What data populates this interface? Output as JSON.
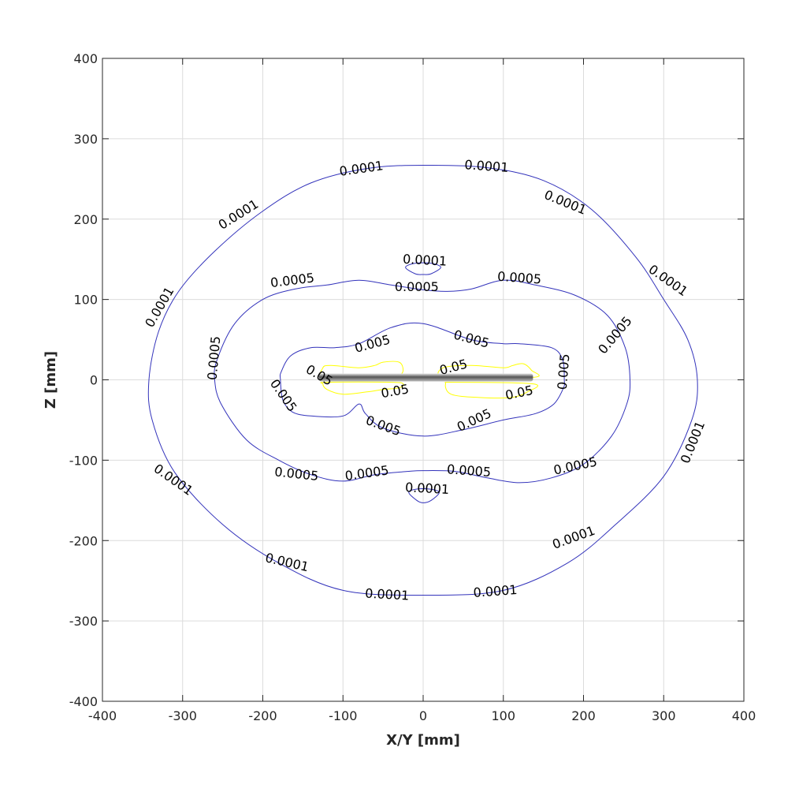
{
  "chart_data": {
    "type": "contour",
    "title": "",
    "xlabel": "X/Y [mm]",
    "ylabel": "Z [mm]",
    "xlim": [
      -400,
      400
    ],
    "ylim": [
      -400,
      400
    ],
    "xticks": [
      -400,
      -300,
      -200,
      -100,
      0,
      100,
      200,
      300,
      400
    ],
    "yticks": [
      -400,
      -300,
      -200,
      -100,
      0,
      100,
      200,
      300,
      400
    ],
    "xtick_labels": [
      "-400",
      "-300",
      "-200",
      "-100",
      "0",
      "100",
      "200",
      "300",
      "400"
    ],
    "ytick_labels": [
      "-400",
      "-300",
      "-200",
      "-100",
      "0",
      "100",
      "200",
      "300",
      "400"
    ],
    "grid": true,
    "conductor": {
      "x_start": -130,
      "x_end": 137,
      "z": 3
    },
    "contours": [
      {
        "level": "0.0001",
        "color": "#3333bb",
        "closed": true,
        "points": [
          [
            0,
            267
          ],
          [
            80,
            264
          ],
          [
            150,
            248
          ],
          [
            210,
            212
          ],
          [
            265,
            153
          ],
          [
            300,
            100
          ],
          [
            330,
            50
          ],
          [
            342,
            0
          ],
          [
            335,
            -50
          ],
          [
            300,
            -120
          ],
          [
            240,
            -180
          ],
          [
            180,
            -228
          ],
          [
            100,
            -262
          ],
          [
            0,
            -268
          ],
          [
            -100,
            -262
          ],
          [
            -180,
            -228
          ],
          [
            -250,
            -180
          ],
          [
            -310,
            -115
          ],
          [
            -338,
            -50
          ],
          [
            -342,
            0
          ],
          [
            -330,
            60
          ],
          [
            -305,
            110
          ],
          [
            -260,
            160
          ],
          [
            -200,
            210
          ],
          [
            -140,
            245
          ],
          [
            -70,
            263
          ]
        ],
        "labels": [
          [
            -77,
            262,
            -8
          ],
          [
            79,
            265,
            4
          ],
          [
            177,
            220,
            22
          ],
          [
            305,
            123,
            35
          ],
          [
            -230,
            205,
            -32
          ],
          [
            -328,
            90,
            -60
          ],
          [
            337,
            -78,
            -68
          ],
          [
            -312,
            -125,
            35
          ],
          [
            188,
            -197,
            -20
          ],
          [
            -170,
            -228,
            13
          ],
          [
            -45,
            -268,
            3
          ],
          [
            90,
            -264,
            -4
          ]
        ]
      },
      {
        "level": "0.0005",
        "color": "#3333bb",
        "closed": true,
        "points": [
          [
            0,
            112
          ],
          [
            -40,
            118
          ],
          [
            -80,
            124
          ],
          [
            -120,
            118
          ],
          [
            -160,
            113
          ],
          [
            -200,
            100
          ],
          [
            -235,
            70
          ],
          [
            -257,
            25
          ],
          [
            -260,
            0
          ],
          [
            -252,
            -30
          ],
          [
            -220,
            -75
          ],
          [
            -180,
            -100
          ],
          [
            -140,
            -118
          ],
          [
            -100,
            -126
          ],
          [
            -60,
            -118
          ],
          [
            -20,
            -114
          ],
          [
            0,
            -113
          ],
          [
            40,
            -114
          ],
          [
            80,
            -122
          ],
          [
            120,
            -128
          ],
          [
            160,
            -122
          ],
          [
            200,
            -105
          ],
          [
            235,
            -70
          ],
          [
            254,
            -30
          ],
          [
            258,
            0
          ],
          [
            252,
            40
          ],
          [
            230,
            80
          ],
          [
            190,
            105
          ],
          [
            140,
            118
          ],
          [
            100,
            124
          ],
          [
            60,
            113
          ],
          [
            30,
            110
          ]
        ],
        "labels": [
          [
            -163,
            123,
            -7
          ],
          [
            -8,
            115,
            0
          ],
          [
            120,
            126,
            4
          ],
          [
            -260,
            27,
            -85
          ],
          [
            240,
            55,
            -50
          ],
          [
            -158,
            -118,
            6
          ],
          [
            -70,
            -117,
            -8
          ],
          [
            57,
            -114,
            4
          ],
          [
            190,
            -108,
            -12
          ]
        ]
      },
      {
        "level": "0.005",
        "color": "#3333bb",
        "closed": true,
        "points": [
          [
            0,
            70
          ],
          [
            -40,
            65
          ],
          [
            -80,
            45
          ],
          [
            -110,
            40
          ],
          [
            -140,
            40
          ],
          [
            -165,
            30
          ],
          [
            -177,
            10
          ],
          [
            -178,
            0
          ],
          [
            -175,
            -25
          ],
          [
            -163,
            -40
          ],
          [
            -140,
            -45
          ],
          [
            -100,
            -45
          ],
          [
            -80,
            -30
          ],
          [
            -72,
            -42
          ],
          [
            -50,
            -60
          ],
          [
            0,
            -70
          ],
          [
            50,
            -62
          ],
          [
            100,
            -50
          ],
          [
            140,
            -42
          ],
          [
            163,
            -30
          ],
          [
            175,
            -10
          ],
          [
            176,
            0
          ],
          [
            174,
            25
          ],
          [
            160,
            40
          ],
          [
            120,
            45
          ],
          [
            100,
            45
          ],
          [
            60,
            50
          ]
        ],
        "labels": [
          [
            -63,
            44,
            -15
          ],
          [
            60,
            50,
            15
          ],
          [
            -175,
            -20,
            55
          ],
          [
            176,
            10,
            -85
          ],
          [
            -50,
            -58,
            20
          ],
          [
            64,
            -51,
            -25
          ]
        ]
      },
      {
        "level": "0.0001",
        "color": "#3333bb",
        "closed": true,
        "points": [
          [
            -22,
            140
          ],
          [
            -10,
            145
          ],
          [
            10,
            145
          ],
          [
            22,
            140
          ],
          [
            10,
            132
          ],
          [
            0,
            131
          ],
          [
            -10,
            132
          ]
        ],
        "labels": [
          [
            2,
            148,
            3
          ]
        ]
      },
      {
        "level": "0.0001",
        "color": "#3333bb",
        "closed": true,
        "points": [
          [
            -18,
            -140
          ],
          [
            -8,
            -150
          ],
          [
            0,
            -153
          ],
          [
            10,
            -150
          ],
          [
            20,
            -140
          ],
          [
            8,
            -136
          ],
          [
            -8,
            -136
          ]
        ],
        "labels": [
          [
            5,
            -136,
            3
          ]
        ]
      },
      {
        "level": "0.05",
        "color": "#ffff00",
        "closed": true,
        "points": [
          [
            -125,
            15
          ],
          [
            -115,
            18
          ],
          [
            -80,
            15
          ],
          [
            -60,
            18
          ],
          [
            -50,
            22
          ],
          [
            -30,
            22
          ],
          [
            -25,
            12
          ],
          [
            -30,
            5
          ],
          [
            -40,
            3
          ],
          [
            -120,
            3
          ]
        ],
        "labels": [
          [
            -130,
            5,
            30
          ]
        ]
      },
      {
        "level": "0.05",
        "color": "#ffff00",
        "closed": true,
        "points": [
          [
            25,
            15
          ],
          [
            60,
            18
          ],
          [
            100,
            15
          ],
          [
            112,
            18
          ],
          [
            125,
            20
          ],
          [
            135,
            12
          ],
          [
            137,
            3
          ],
          [
            30,
            3
          ]
        ],
        "labels": [
          [
            38,
            15,
            -15
          ]
        ]
      },
      {
        "level": "0.05",
        "color": "#ffff00",
        "closed": true,
        "points": [
          [
            -125,
            -5
          ],
          [
            -120,
            -12
          ],
          [
            -100,
            -18
          ],
          [
            -70,
            -15
          ],
          [
            -50,
            -12
          ],
          [
            -30,
            -10
          ],
          [
            -25,
            -5
          ],
          [
            -40,
            -3
          ],
          [
            -120,
            -3
          ]
        ],
        "labels": []
      },
      {
        "level": "0.05",
        "color": "#ffff00",
        "closed": true,
        "points": [
          [
            28,
            -5
          ],
          [
            35,
            -18
          ],
          [
            70,
            -22
          ],
          [
            110,
            -22
          ],
          [
            130,
            -15
          ],
          [
            137,
            -5
          ],
          [
            40,
            -3
          ]
        ],
        "labels": [
          [
            -35,
            -15,
            -10
          ],
          [
            120,
            -17,
            -12
          ]
        ]
      }
    ]
  }
}
